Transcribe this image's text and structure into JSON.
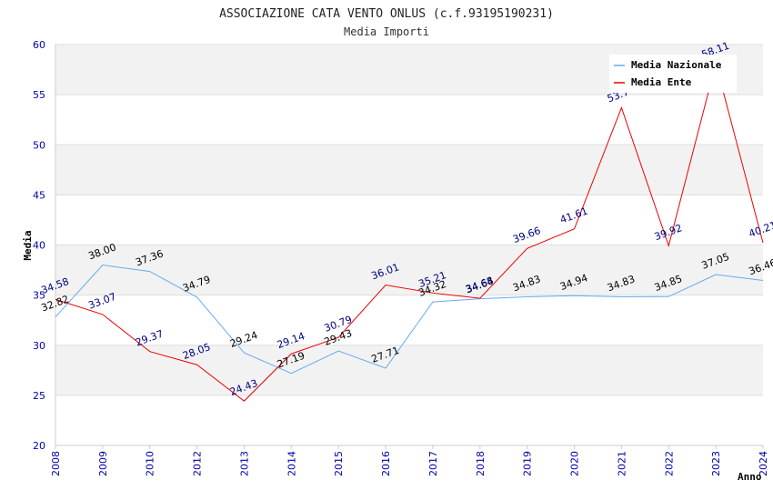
{
  "chart_data": {
    "type": "line",
    "title": "ASSOCIAZIONE CATA VENTO ONLUS (c.f.93195190231)",
    "subtitle": "Media Importi",
    "ylabel": "Media",
    "xlabel": "Anno",
    "ylim": [
      20,
      60
    ],
    "yticks": [
      20,
      25,
      30,
      35,
      40,
      45,
      50,
      55,
      60
    ],
    "categories": [
      "2008",
      "2009",
      "2010",
      "2012",
      "2013",
      "2014",
      "2015",
      "2016",
      "2017",
      "2018",
      "2019",
      "2020",
      "2021",
      "2022",
      "2023",
      "2024"
    ],
    "series": [
      {
        "name": "Media Nazionale",
        "color": "#66aaee",
        "label_color": "#000000",
        "values": [
          32.82,
          38.0,
          37.36,
          34.79,
          29.24,
          27.19,
          29.43,
          27.71,
          34.32,
          34.64,
          34.83,
          34.94,
          34.83,
          34.85,
          37.05,
          36.46
        ],
        "labels": [
          "32.82",
          "38.00",
          "37.36",
          "34.79",
          "29.24",
          "27.19",
          "29.43",
          "27.71",
          "34.32",
          "34.64",
          "34.83",
          "34.94",
          "34.83",
          "34.85",
          "37.05",
          "36.46"
        ]
      },
      {
        "name": "Media Ente",
        "color": "#ee0000",
        "label_color": "#000080",
        "values": [
          34.58,
          33.07,
          29.37,
          28.05,
          24.43,
          29.14,
          30.79,
          36.01,
          35.21,
          34.68,
          39.66,
          41.61,
          53.7,
          39.92,
          58.11,
          40.21
        ],
        "labels": [
          "34.58",
          "33.07",
          "29.37",
          "28.05",
          "24.43",
          "29.14",
          "30.79",
          "36.01",
          "35.21",
          "34.68",
          "39.66",
          "41.61",
          "53.7",
          "39.92",
          "58.11",
          "40.21"
        ]
      }
    ],
    "legend": "top-right",
    "grid": true
  }
}
